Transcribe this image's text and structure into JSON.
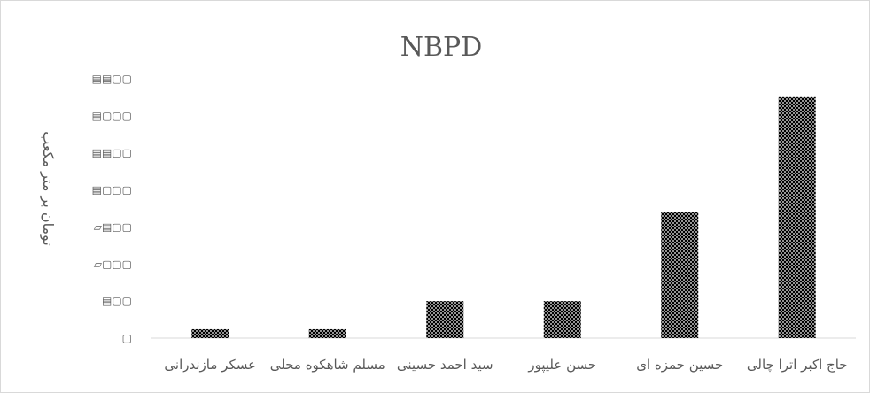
{
  "chart_data": {
    "type": "bar",
    "title": "NBPD",
    "ylabel": "تومان بر متر مکعب",
    "categories": [
      "عسکر مازندرانی",
      "مسلم شاهکوه محلی",
      "سید احمد حسینی",
      "حسن علیپور",
      "حسین حمزه ای",
      "حاج اکبر اترا چالی"
    ],
    "values": [
      0.024,
      0.024,
      0.1,
      0.1,
      0.34,
      0.65
    ],
    "ylim": [
      0,
      0.8
    ],
    "yticks": [
      0,
      0.1,
      0.2,
      0.3,
      0.4,
      0.5,
      0.6,
      0.7
    ],
    "ytick_labels": [
      "▢",
      "▤▢▢",
      "▱▢▢▢",
      "▱▤▢▢",
      "▤▢▢▢",
      "▤▤▢▢",
      "▤▢▢▢",
      "▤▤▢▢"
    ],
    "grid": false,
    "legend": "none",
    "bar_pattern": "dotted",
    "colors": {
      "bar": "#000000",
      "dot": "#ffffff",
      "axis": "#d9d9d9",
      "text": "#595959"
    }
  }
}
